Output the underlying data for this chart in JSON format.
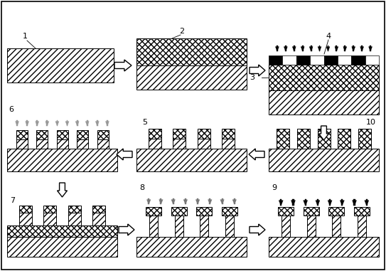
{
  "fig_width": 5.43,
  "fig_height": 3.81,
  "dpi": 100,
  "background": "#ffffff"
}
